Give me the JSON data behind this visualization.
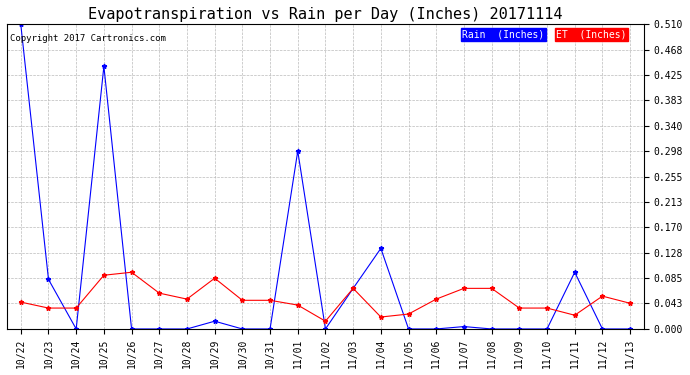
{
  "title": "Evapotranspiration vs Rain per Day (Inches) 20171114",
  "copyright": "Copyright 2017 Cartronics.com",
  "x_labels": [
    "10/22",
    "10/23",
    "10/24",
    "10/25",
    "10/26",
    "10/27",
    "10/28",
    "10/29",
    "10/30",
    "10/31",
    "11/01",
    "11/02",
    "11/03",
    "11/04",
    "11/05",
    "11/06",
    "11/07",
    "11/08",
    "11/09",
    "11/10",
    "11/11",
    "11/12",
    "11/13"
  ],
  "rain_inches": [
    0.51,
    0.083,
    0.0,
    0.44,
    0.0,
    0.0,
    0.0,
    0.013,
    0.0,
    0.0,
    0.298,
    0.0,
    0.068,
    0.135,
    0.0,
    0.0,
    0.004,
    0.0,
    0.0,
    0.0,
    0.095,
    0.0,
    0.0
  ],
  "et_inches": [
    0.045,
    0.035,
    0.035,
    0.09,
    0.095,
    0.06,
    0.05,
    0.085,
    0.048,
    0.048,
    0.04,
    0.013,
    0.068,
    0.02,
    0.025,
    0.05,
    0.068,
    0.068,
    0.035,
    0.035,
    0.023,
    0.055,
    0.043
  ],
  "rain_color": "#0000ff",
  "et_color": "#ff0000",
  "bg_color": "#ffffff",
  "grid_color": "#bbbbbb",
  "title_fontsize": 11,
  "axis_fontsize": 7,
  "y_ticks": [
    0.0,
    0.043,
    0.085,
    0.128,
    0.17,
    0.213,
    0.255,
    0.298,
    0.34,
    0.383,
    0.425,
    0.468,
    0.51
  ],
  "ylim": [
    0.0,
    0.51
  ],
  "legend_rain_label": "Rain  (Inches)",
  "legend_et_label": "ET  (Inches)"
}
